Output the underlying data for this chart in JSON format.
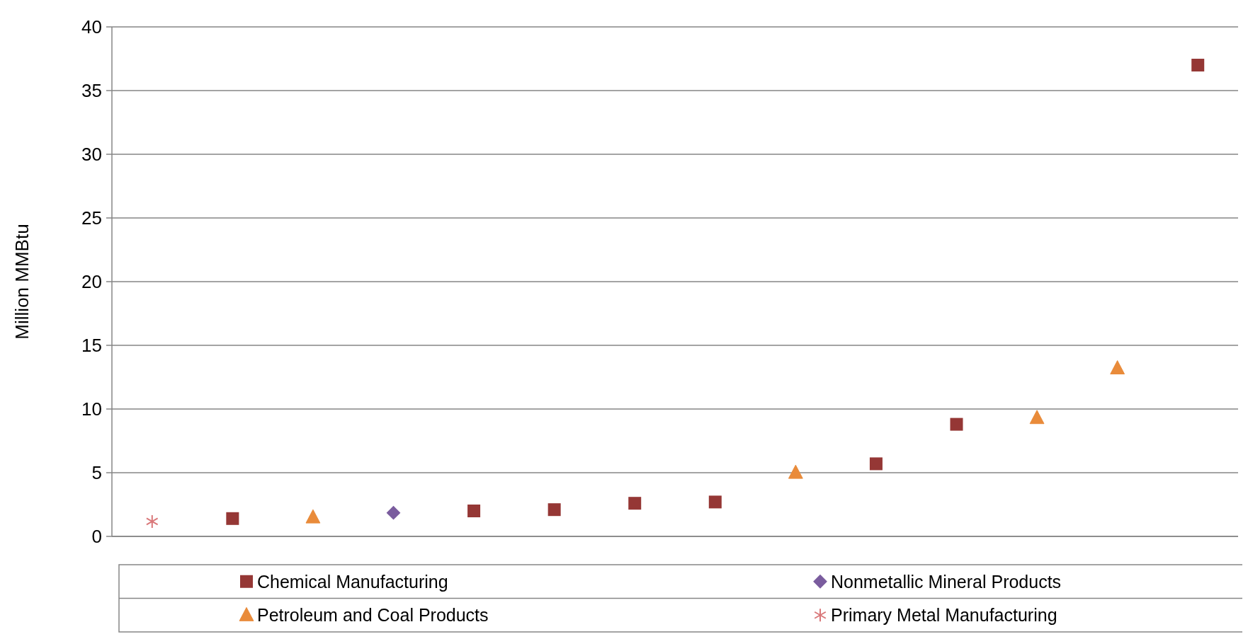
{
  "chart_data": {
    "type": "scatter",
    "ylabel": "Million MMBtu",
    "categories": [
      null,
      null,
      null,
      null,
      null,
      null,
      null,
      null,
      null,
      null,
      null,
      null,
      null,
      null
    ],
    "ylim": [
      0,
      40
    ],
    "yticks": [
      0,
      5,
      10,
      15,
      20,
      25,
      30,
      35,
      40
    ],
    "grid": "y",
    "legend": "bottom",
    "series": [
      {
        "name": "Chemical Manufacturing",
        "color": "#953735",
        "marker": "square",
        "values": [
          null,
          1.4,
          null,
          null,
          2.0,
          2.1,
          2.6,
          2.7,
          null,
          5.7,
          8.8,
          null,
          null,
          37.0
        ]
      },
      {
        "name": "Nonmetallic Mineral Products",
        "color": "#7a5c9e",
        "marker": "diamond",
        "values": [
          null,
          null,
          null,
          1.85,
          null,
          null,
          null,
          null,
          null,
          null,
          null,
          null,
          null,
          null
        ]
      },
      {
        "name": "Petroleum and Coal Products",
        "color": "#e98b3a",
        "marker": "triangle",
        "values": [
          null,
          null,
          1.5,
          null,
          null,
          null,
          null,
          null,
          5.0,
          null,
          null,
          9.3,
          13.2,
          null
        ]
      },
      {
        "name": "Primary Metal Manufacturing",
        "color": "#d9787a",
        "marker": "cross",
        "values": [
          1.17,
          null,
          null,
          null,
          null,
          null,
          null,
          null,
          null,
          null,
          null,
          null,
          null,
          null
        ]
      }
    ]
  }
}
